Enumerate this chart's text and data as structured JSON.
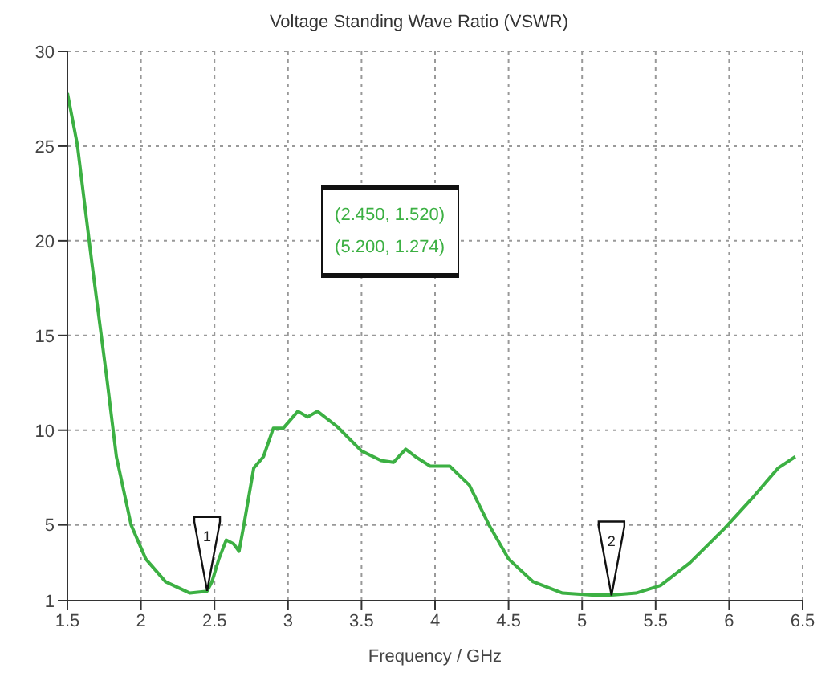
{
  "chart_data": {
    "type": "line",
    "title": "Voltage Standing Wave Ratio (VSWR)",
    "xlabel": "Frequency / GHz",
    "series": [
      {
        "color": "#3cb043",
        "x": [
          1.5,
          1.567,
          1.667,
          1.767,
          1.833,
          1.933,
          2.033,
          2.167,
          2.333,
          2.45,
          2.483,
          2.53,
          2.58,
          2.63,
          2.667,
          2.7,
          2.767,
          2.833,
          2.9,
          2.967,
          3.067,
          3.133,
          3.2,
          3.333,
          3.5,
          3.633,
          3.717,
          3.8,
          3.867,
          3.967,
          4.1,
          4.233,
          4.367,
          4.5,
          4.667,
          4.867,
          5.067,
          5.2,
          5.367,
          5.533,
          5.733,
          5.967,
          6.167,
          6.333,
          6.45
        ],
        "values": [
          27.8,
          25.1,
          18.8,
          12.8,
          8.6,
          5.0,
          3.2,
          2.0,
          1.4,
          1.5,
          2.0,
          3.2,
          4.2,
          4.0,
          3.6,
          5.0,
          8.0,
          8.6,
          10.1,
          10.1,
          11.0,
          10.7,
          11.0,
          10.2,
          8.9,
          8.4,
          8.3,
          9.0,
          8.6,
          8.1,
          8.1,
          7.1,
          5.0,
          3.2,
          2.0,
          1.4,
          1.3,
          1.3,
          1.4,
          1.8,
          3.0,
          4.8,
          6.5,
          8.0,
          8.6
        ]
      }
    ],
    "xlim": [
      1.5,
      6.5
    ],
    "xticks": [
      1.5,
      2,
      2.5,
      3,
      3.5,
      4,
      4.5,
      5,
      5.5,
      6,
      6.5
    ],
    "ylim": [
      1,
      30
    ],
    "yticks": [
      1,
      5,
      10,
      15,
      20,
      25,
      30
    ],
    "grid": true,
    "marker": "none",
    "line_style": "solid",
    "annotations": [
      {
        "text": "1",
        "x": 2.45,
        "y": 1.52
      },
      {
        "text": "2",
        "x": 5.2,
        "y": 1.274
      },
      "(2.450, 1.520)",
      "(5.200, 1.274)"
    ]
  }
}
